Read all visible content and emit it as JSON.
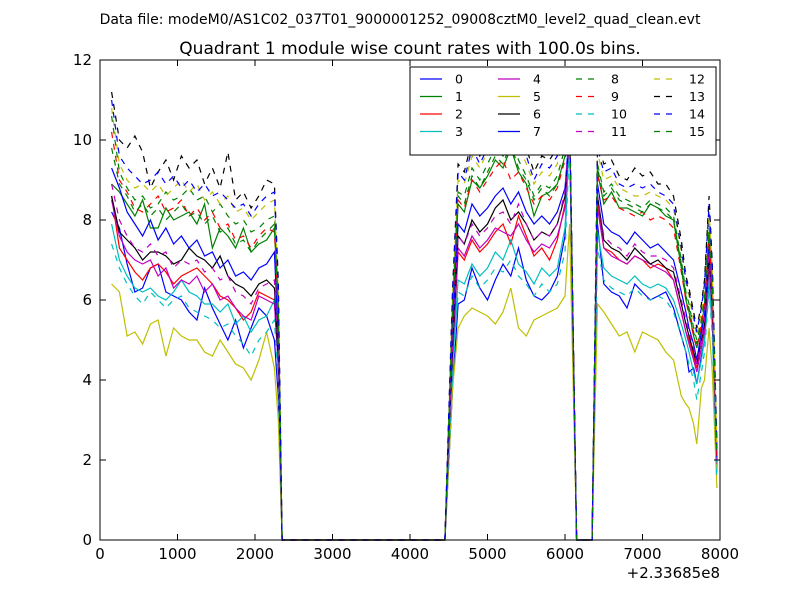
{
  "chart_data": {
    "type": "line",
    "suptitle": "Data file: modeM0/AS1C02_037T01_9000001252_09008cztM0_level2_quad_clean.evt",
    "title": "Quadrant 1 module wise count rates with 100.0s bins.",
    "xlabel": "",
    "ylabel": "",
    "xlim": [
      0,
      8000
    ],
    "ylim": [
      0,
      12
    ],
    "x_offset_label": "+2.33685e8",
    "xticks": [
      0,
      1000,
      2000,
      3000,
      4000,
      5000,
      6000,
      7000,
      8000
    ],
    "yticks": [
      0,
      2,
      4,
      6,
      8,
      10,
      12
    ],
    "legend_position": "top-right",
    "legend_columns": 4,
    "x": [
      150,
      250,
      350,
      450,
      550,
      650,
      750,
      850,
      950,
      1050,
      1150,
      1250,
      1350,
      1450,
      1550,
      1650,
      1750,
      1850,
      1950,
      2050,
      2150,
      2250,
      2300,
      2350,
      2450,
      2550,
      4450,
      4550,
      4620,
      4700,
      4800,
      4900,
      5000,
      5100,
      5200,
      5300,
      5400,
      5500,
      5600,
      5700,
      5800,
      5900,
      6000,
      6060,
      6150,
      6350,
      6420,
      6500,
      6600,
      6700,
      6800,
      6900,
      7000,
      7100,
      7200,
      7300,
      7400,
      7500,
      7560,
      7600,
      7660,
      7700,
      7760,
      7800,
      7860,
      7900,
      7960
    ],
    "series": [
      {
        "name": "0",
        "color": "#0000ff",
        "dash": "solid",
        "values": [
          8.2,
          7.8,
          6.9,
          6.2,
          6.3,
          6.8,
          6.9,
          6.2,
          6.1,
          6.0,
          5.7,
          5.5,
          6.3,
          5.8,
          5.4,
          5.0,
          5.5,
          4.8,
          5.3,
          5.8,
          5.6,
          5.0,
          3.6,
          0,
          0,
          0,
          0,
          3.8,
          5.9,
          6.0,
          6.8,
          6.3,
          6.0,
          6.5,
          6.9,
          6.6,
          7.3,
          6.5,
          6.1,
          6.0,
          6.2,
          6.6,
          7.6,
          10.4,
          0,
          0,
          7.9,
          6.4,
          6.2,
          6.1,
          5.8,
          6.4,
          6.2,
          6.0,
          6.1,
          6.2,
          5.8,
          5.1,
          4.7,
          4.2,
          4.3,
          3.9,
          4.6,
          5.0,
          6.4,
          5.4,
          1.8
        ]
      },
      {
        "name": "1",
        "color": "#008000",
        "dash": "solid",
        "values": [
          8.9,
          8.7,
          8.4,
          8.1,
          8.5,
          7.8,
          7.8,
          8.3,
          8.0,
          8.1,
          8.2,
          7.9,
          8.4,
          7.3,
          7.8,
          7.6,
          7.3,
          7.8,
          7.2,
          7.4,
          7.5,
          7.8,
          5.8,
          0,
          0,
          0,
          0,
          5.6,
          8.4,
          8.2,
          9.0,
          8.8,
          9.1,
          9.5,
          9.3,
          9.8,
          9.2,
          8.9,
          8.1,
          8.6,
          8.7,
          8.9,
          9.6,
          10.3,
          0,
          0,
          9.2,
          8.4,
          8.7,
          8.3,
          8.3,
          8.2,
          8.1,
          8.4,
          8.3,
          8.1,
          8.0,
          6.8,
          6.0,
          5.7,
          5.1,
          4.8,
          5.3,
          5.9,
          7.7,
          6.3,
          2.1
        ]
      },
      {
        "name": "2",
        "color": "#ff0000",
        "dash": "solid",
        "values": [
          8.6,
          7.3,
          7.0,
          6.7,
          6.5,
          6.8,
          6.9,
          6.7,
          6.4,
          6.6,
          6.7,
          6.8,
          6.6,
          6.4,
          6.1,
          6.0,
          5.8,
          5.5,
          5.7,
          6.2,
          6.1,
          6.0,
          4.4,
          0,
          0,
          0,
          0,
          4.6,
          7.2,
          7.0,
          7.5,
          7.2,
          7.4,
          7.7,
          7.9,
          7.4,
          8.1,
          7.6,
          7.1,
          7.3,
          7.0,
          7.5,
          8.4,
          10.1,
          0,
          0,
          8.4,
          7.3,
          7.2,
          7.0,
          6.9,
          7.1,
          7.0,
          6.8,
          6.9,
          6.8,
          6.5,
          5.7,
          5.2,
          5.0,
          4.6,
          4.3,
          4.8,
          5.3,
          6.9,
          5.8,
          1.9
        ]
      },
      {
        "name": "3",
        "color": "#00bfbf",
        "dash": "solid",
        "values": [
          7.9,
          7.0,
          6.6,
          6.3,
          6.2,
          6.3,
          6.1,
          6.0,
          6.2,
          6.5,
          6.2,
          6.1,
          5.9,
          5.9,
          5.7,
          5.9,
          5.4,
          5.6,
          5.2,
          5.5,
          5.6,
          6.0,
          4.3,
          0,
          0,
          0,
          0,
          4.4,
          6.5,
          6.4,
          6.9,
          6.6,
          6.8,
          7.2,
          7.0,
          7.5,
          6.9,
          6.7,
          6.4,
          6.8,
          6.6,
          6.8,
          7.8,
          10.1,
          0,
          0,
          7.7,
          6.8,
          6.6,
          6.5,
          6.4,
          6.6,
          6.4,
          6.3,
          6.4,
          6.3,
          6.0,
          5.4,
          5.0,
          4.7,
          4.2,
          3.9,
          4.5,
          5.0,
          6.6,
          5.4,
          1.7
        ]
      },
      {
        "name": "4",
        "color": "#bf00bf",
        "dash": "solid",
        "values": [
          8.5,
          7.6,
          7.2,
          7.0,
          6.9,
          7.0,
          6.6,
          6.8,
          6.3,
          6.5,
          6.4,
          6.6,
          6.2,
          6.4,
          6.0,
          6.1,
          5.8,
          5.6,
          5.5,
          6.1,
          6.0,
          5.9,
          4.4,
          0,
          0,
          0,
          0,
          4.7,
          7.3,
          7.1,
          7.6,
          7.3,
          7.5,
          7.8,
          7.7,
          7.6,
          7.9,
          7.5,
          7.2,
          7.4,
          7.3,
          7.6,
          8.3,
          10.2,
          0,
          0,
          8.3,
          7.3,
          7.1,
          7.0,
          6.9,
          7.1,
          7.0,
          6.9,
          6.8,
          6.7,
          6.5,
          5.7,
          5.2,
          4.9,
          4.5,
          4.2,
          4.8,
          5.2,
          6.9,
          5.7,
          1.9
        ]
      },
      {
        "name": "5",
        "color": "#bfbf00",
        "dash": "solid",
        "values": [
          6.4,
          6.2,
          5.1,
          5.2,
          4.9,
          5.4,
          5.5,
          4.6,
          5.3,
          5.1,
          5.0,
          5.0,
          4.7,
          4.6,
          5.0,
          4.7,
          4.4,
          4.3,
          4.0,
          4.5,
          5.2,
          4.3,
          3.0,
          0,
          0,
          0,
          0,
          3.8,
          5.3,
          5.6,
          5.8,
          5.7,
          5.6,
          5.4,
          5.7,
          6.3,
          5.3,
          5.1,
          5.5,
          5.6,
          5.7,
          5.8,
          6.1,
          7.9,
          0,
          0,
          5.9,
          5.7,
          5.4,
          5.1,
          5.2,
          4.7,
          5.2,
          5.1,
          5.0,
          4.7,
          4.5,
          3.6,
          3.4,
          3.3,
          2.9,
          2.4,
          3.8,
          4.0,
          5.3,
          4.2,
          1.3
        ]
      },
      {
        "name": "6",
        "color": "#000000",
        "dash": "solid",
        "values": [
          8.6,
          7.7,
          7.5,
          7.3,
          7.0,
          7.2,
          7.2,
          7.1,
          6.9,
          7.0,
          7.3,
          7.1,
          7.0,
          6.8,
          7.1,
          6.6,
          6.4,
          6.3,
          6.1,
          6.4,
          6.5,
          6.3,
          4.5,
          0,
          0,
          0,
          0,
          4.8,
          7.6,
          7.4,
          8.0,
          7.7,
          7.9,
          8.3,
          8.5,
          8.0,
          8.2,
          7.9,
          7.5,
          7.7,
          7.6,
          7.9,
          8.6,
          10.3,
          0,
          0,
          8.6,
          7.5,
          7.3,
          7.2,
          7.0,
          7.3,
          7.1,
          6.9,
          7.0,
          6.8,
          6.7,
          5.9,
          5.4,
          5.1,
          4.7,
          4.4,
          5.0,
          5.4,
          7.1,
          5.9,
          2.0
        ]
      },
      {
        "name": "7",
        "color": "#0000ff",
        "dash": "solid",
        "values": [
          9.3,
          8.8,
          8.2,
          7.9,
          7.6,
          8.0,
          7.5,
          7.8,
          7.4,
          7.6,
          7.3,
          7.5,
          7.1,
          7.2,
          6.8,
          7.0,
          6.6,
          6.7,
          6.5,
          6.8,
          6.9,
          7.2,
          5.0,
          0,
          0,
          0,
          0,
          5.2,
          7.9,
          7.7,
          8.4,
          8.1,
          8.3,
          8.6,
          8.8,
          8.4,
          8.7,
          8.2,
          7.9,
          8.1,
          7.9,
          8.2,
          8.8,
          10.3,
          0,
          0,
          8.9,
          7.9,
          7.7,
          7.6,
          7.4,
          7.7,
          7.5,
          7.3,
          7.4,
          7.2,
          7.0,
          6.2,
          5.7,
          5.3,
          4.9,
          4.5,
          5.2,
          5.6,
          7.4,
          6.1,
          2.0
        ]
      },
      {
        "name": "8",
        "color": "#008000",
        "dash": "dashed",
        "values": [
          10.6,
          9.2,
          8.8,
          8.5,
          8.6,
          8.3,
          8.4,
          8.7,
          8.5,
          8.6,
          8.8,
          8.5,
          8.6,
          8.2,
          8.4,
          8.1,
          7.9,
          8.0,
          7.7,
          7.8,
          8.0,
          8.1,
          6.0,
          0,
          0,
          0,
          0,
          5.9,
          8.7,
          8.6,
          9.3,
          9.0,
          9.4,
          9.8,
          9.6,
          10.1,
          9.5,
          9.1,
          8.6,
          8.9,
          8.8,
          9.1,
          9.8,
          10.5,
          0,
          0,
          9.4,
          8.7,
          8.9,
          8.6,
          8.5,
          8.4,
          8.3,
          8.5,
          8.4,
          8.3,
          8.1,
          7.0,
          6.2,
          5.9,
          5.3,
          5.0,
          5.5,
          6.1,
          7.9,
          6.5,
          2.2
        ]
      },
      {
        "name": "9",
        "color": "#ff0000",
        "dash": "dashed",
        "values": [
          10.2,
          9.0,
          8.7,
          8.3,
          8.2,
          8.4,
          8.6,
          8.2,
          8.3,
          8.5,
          8.1,
          8.3,
          8.0,
          8.2,
          7.8,
          7.9,
          7.5,
          7.6,
          7.3,
          7.6,
          7.8,
          7.7,
          5.7,
          0,
          0,
          0,
          0,
          5.7,
          8.5,
          8.3,
          9.0,
          8.7,
          9.0,
          9.3,
          9.5,
          9.0,
          9.2,
          8.8,
          8.4,
          8.6,
          8.5,
          8.8,
          9.5,
          10.4,
          0,
          0,
          9.1,
          8.5,
          8.6,
          8.3,
          8.2,
          8.1,
          8.2,
          8.0,
          8.1,
          8.0,
          7.8,
          6.7,
          6.0,
          5.6,
          5.1,
          4.8,
          5.4,
          5.9,
          7.6,
          6.2,
          2.1
        ]
      },
      {
        "name": "10",
        "color": "#00bfbf",
        "dash": "dashed",
        "values": [
          7.4,
          6.8,
          6.4,
          6.1,
          5.9,
          6.2,
          6.0,
          5.8,
          6.0,
          6.1,
          5.8,
          5.7,
          5.6,
          5.5,
          5.3,
          5.4,
          5.1,
          4.9,
          4.6,
          5.0,
          5.2,
          5.5,
          3.9,
          0,
          0,
          0,
          0,
          4.1,
          6.2,
          6.1,
          6.6,
          6.3,
          6.5,
          6.8,
          6.7,
          7.0,
          6.6,
          6.4,
          6.1,
          6.4,
          6.2,
          6.4,
          7.2,
          9.9,
          0,
          0,
          7.3,
          6.5,
          6.3,
          6.2,
          6.1,
          6.3,
          6.1,
          6.0,
          6.1,
          6.0,
          5.7,
          5.1,
          4.7,
          4.4,
          4.0,
          3.5,
          4.2,
          4.7,
          6.3,
          5.1,
          1.5
        ]
      },
      {
        "name": "11",
        "color": "#bf00bf",
        "dash": "dashed",
        "values": [
          8.9,
          8.0,
          7.6,
          7.3,
          7.2,
          7.4,
          7.1,
          7.2,
          6.8,
          7.0,
          6.9,
          7.0,
          6.7,
          6.8,
          6.5,
          6.6,
          6.2,
          6.1,
          5.9,
          6.3,
          6.4,
          6.5,
          4.7,
          0,
          0,
          0,
          0,
          4.9,
          7.6,
          7.4,
          7.9,
          7.6,
          7.8,
          8.1,
          8.2,
          7.9,
          8.4,
          7.9,
          7.5,
          7.7,
          7.6,
          7.9,
          8.7,
          10.2,
          0,
          0,
          8.6,
          7.6,
          7.4,
          7.3,
          7.1,
          7.4,
          7.2,
          7.1,
          7.1,
          7.0,
          6.8,
          6.0,
          5.5,
          5.2,
          4.8,
          4.4,
          5.0,
          5.5,
          7.2,
          5.9,
          2.0
        ]
      },
      {
        "name": "12",
        "color": "#bfbf00",
        "dash": "dashed",
        "values": [
          10.8,
          9.4,
          9.0,
          8.8,
          8.9,
          8.7,
          8.9,
          8.6,
          8.8,
          9.0,
          8.7,
          8.9,
          8.5,
          8.7,
          8.4,
          8.6,
          8.2,
          8.3,
          8.0,
          8.2,
          8.4,
          8.5,
          6.2,
          0,
          0,
          0,
          0,
          6.1,
          9.0,
          8.9,
          9.6,
          9.3,
          9.7,
          10.2,
          10.0,
          10.5,
          9.9,
          9.4,
          8.9,
          9.2,
          9.1,
          9.4,
          10.2,
          10.6,
          0,
          0,
          9.7,
          9.0,
          9.1,
          8.8,
          8.7,
          8.6,
          8.6,
          8.7,
          8.6,
          8.5,
          8.3,
          7.2,
          6.4,
          6.1,
          5.5,
          5.1,
          5.7,
          6.3,
          8.2,
          6.7,
          2.3
        ]
      },
      {
        "name": "13",
        "color": "#000000",
        "dash": "dashed",
        "values": [
          11.2,
          10.0,
          9.8,
          10.1,
          9.7,
          8.8,
          9.2,
          9.5,
          9.0,
          9.6,
          9.3,
          9.5,
          8.9,
          9.3,
          8.8,
          9.7,
          8.5,
          8.7,
          8.3,
          8.6,
          9.0,
          8.9,
          6.5,
          0,
          0,
          0,
          0,
          6.3,
          9.4,
          9.2,
          10.0,
          9.6,
          10.1,
          10.5,
          10.3,
          10.9,
          10.1,
          9.8,
          9.2,
          9.6,
          9.5,
          9.8,
          10.5,
          10.8,
          0,
          0,
          10.0,
          9.4,
          9.5,
          9.1,
          9.0,
          9.3,
          9.1,
          9.2,
          8.9,
          8.9,
          8.6,
          7.5,
          6.6,
          6.3,
          5.7,
          5.3,
          5.9,
          6.5,
          8.6,
          6.9,
          2.4
        ]
      },
      {
        "name": "14",
        "color": "#0000ff",
        "dash": "dashed",
        "values": [
          11.0,
          9.6,
          9.3,
          9.1,
          8.9,
          9.0,
          9.2,
          8.9,
          9.1,
          8.8,
          9.0,
          8.7,
          8.9,
          8.6,
          8.7,
          8.5,
          8.3,
          8.4,
          8.1,
          8.4,
          8.6,
          8.7,
          6.3,
          0,
          0,
          0,
          0,
          6.2,
          9.2,
          9.0,
          9.8,
          9.4,
          9.8,
          10.3,
          10.1,
          10.7,
          10.0,
          9.6,
          9.0,
          9.4,
          9.3,
          9.6,
          10.3,
          10.7,
          0,
          0,
          9.8,
          9.2,
          9.3,
          8.9,
          8.8,
          8.9,
          8.8,
          8.9,
          8.7,
          8.6,
          8.4,
          7.3,
          6.5,
          6.2,
          5.6,
          5.2,
          5.8,
          6.4,
          8.4,
          6.8,
          2.3
        ]
      },
      {
        "name": "15",
        "color": "#008000",
        "dash": "dashed",
        "values": [
          9.8,
          8.9,
          8.6,
          8.2,
          8.4,
          8.1,
          8.3,
          8.0,
          8.2,
          8.4,
          8.1,
          8.2,
          7.9,
          8.1,
          7.7,
          7.8,
          7.4,
          7.5,
          7.2,
          7.5,
          7.7,
          7.9,
          5.8,
          0,
          0,
          0,
          0,
          5.8,
          8.6,
          8.4,
          9.1,
          8.8,
          9.2,
          9.6,
          9.4,
          9.9,
          9.3,
          9.0,
          8.5,
          8.8,
          8.6,
          8.9,
          9.6,
          10.4,
          0,
          0,
          9.3,
          8.6,
          8.8,
          8.5,
          8.4,
          8.3,
          8.2,
          8.4,
          8.3,
          8.2,
          8.0,
          6.9,
          6.1,
          5.8,
          5.2,
          4.9,
          5.5,
          6.0,
          7.8,
          6.4,
          2.1
        ]
      }
    ]
  }
}
